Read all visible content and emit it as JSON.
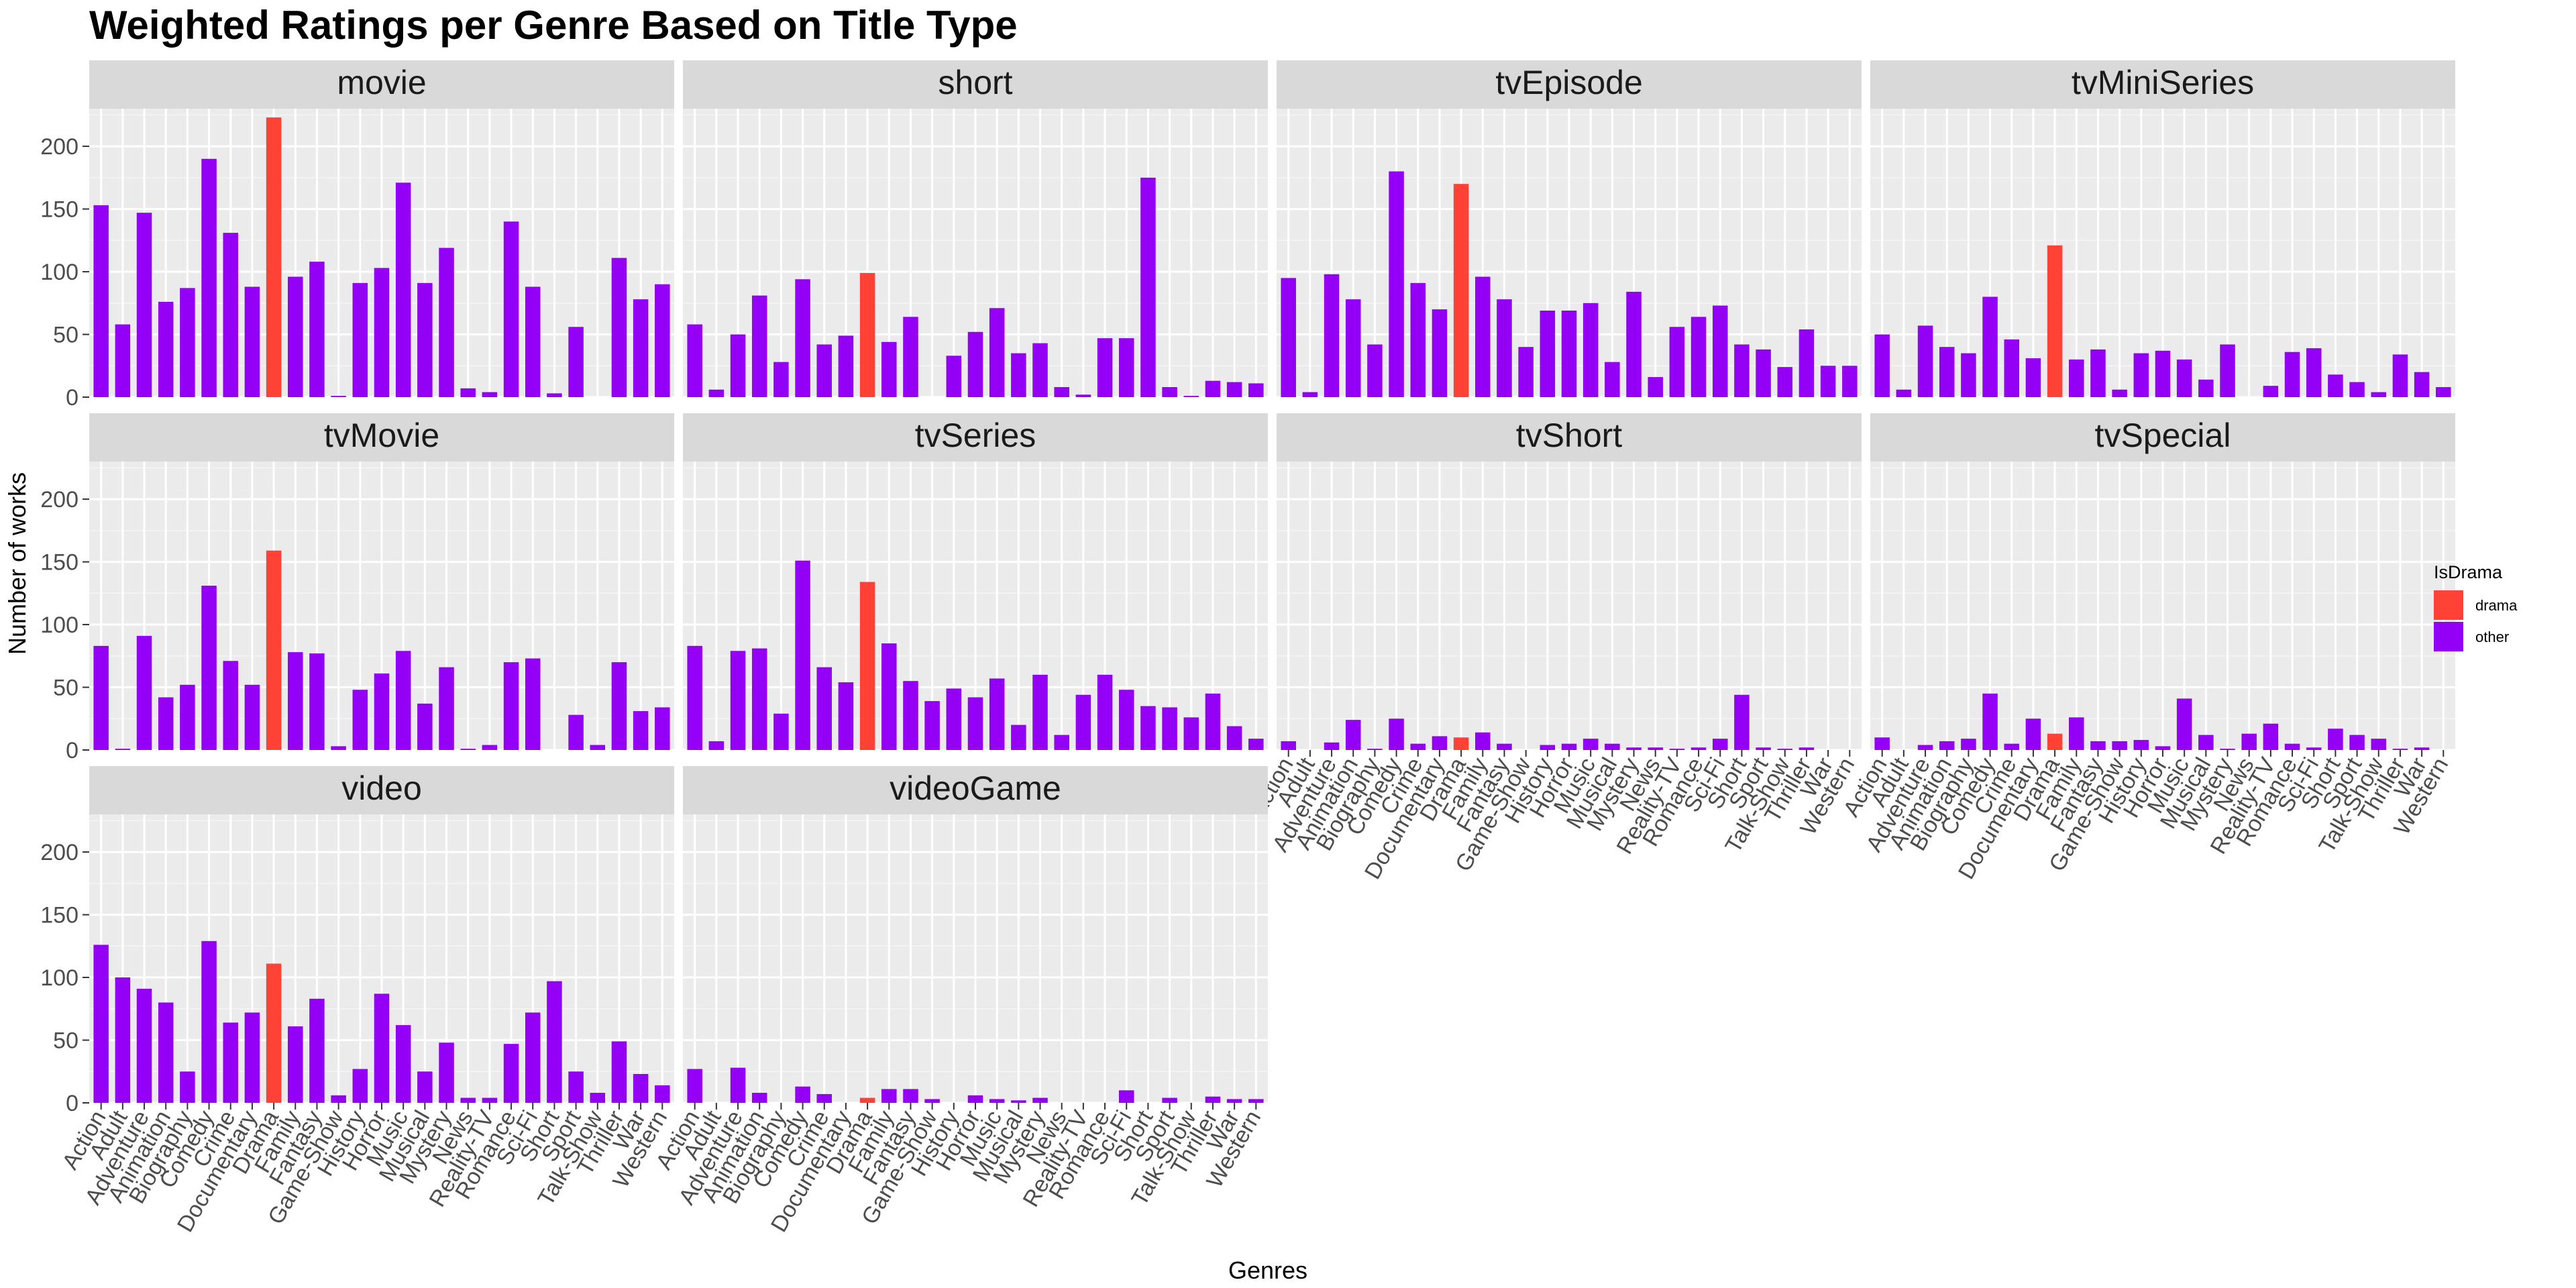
{
  "chart_data": {
    "type": "bar",
    "title": "Weighted Ratings per Genre Based on Title Type",
    "xlabel": "Genres",
    "ylabel": "Number of works",
    "ylim": [
      0,
      230
    ],
    "yticks": [
      0,
      50,
      100,
      150,
      200
    ],
    "grid": true,
    "facet_layout": "3 rows x 4 columns, shared axes",
    "legend": {
      "title": "IsDrama",
      "position": "right",
      "entries": [
        {
          "label": "drama",
          "color": "#ff4136"
        },
        {
          "label": "other",
          "color": "#9400f5"
        }
      ]
    },
    "categories": [
      "Action",
      "Adult",
      "Adventure",
      "Animation",
      "Biography",
      "Comedy",
      "Crime",
      "Documentary",
      "Drama",
      "Family",
      "Fantasy",
      "Game-Show",
      "History",
      "Horror",
      "Music",
      "Musical",
      "Mystery",
      "News",
      "Reality-TV",
      "Romance",
      "Sci-Fi",
      "Short",
      "Sport",
      "Talk-Show",
      "Thriller",
      "War",
      "Western"
    ],
    "highlight_category": "Drama",
    "panels": [
      {
        "name": "movie",
        "values": [
          153,
          58,
          147,
          76,
          87,
          190,
          131,
          88,
          223,
          96,
          108,
          1,
          91,
          103,
          171,
          91,
          119,
          7,
          4,
          140,
          88,
          3,
          56,
          0,
          111,
          78,
          90
        ]
      },
      {
        "name": "short",
        "values": [
          58,
          6,
          50,
          81,
          28,
          94,
          42,
          49,
          99,
          44,
          64,
          0,
          33,
          52,
          71,
          35,
          43,
          8,
          2,
          47,
          47,
          175,
          8,
          1,
          13,
          12,
          11
        ]
      },
      {
        "name": "tvEpisode",
        "values": [
          95,
          4,
          98,
          78,
          42,
          180,
          91,
          70,
          170,
          96,
          78,
          40,
          69,
          69,
          75,
          28,
          84,
          16,
          56,
          64,
          73,
          42,
          38,
          24,
          54,
          25,
          25
        ]
      },
      {
        "name": "tvMiniSeries",
        "values": [
          50,
          6,
          57,
          40,
          35,
          80,
          46,
          31,
          121,
          30,
          38,
          6,
          35,
          37,
          30,
          14,
          42,
          0,
          9,
          36,
          39,
          18,
          12,
          4,
          34,
          20,
          8
        ]
      },
      {
        "name": "tvMovie",
        "values": [
          83,
          1,
          91,
          42,
          52,
          131,
          71,
          52,
          159,
          78,
          77,
          3,
          48,
          61,
          79,
          37,
          66,
          1,
          4,
          70,
          73,
          0,
          28,
          4,
          70,
          31,
          34
        ]
      },
      {
        "name": "tvSeries",
        "values": [
          83,
          7,
          79,
          81,
          29,
          151,
          66,
          54,
          134,
          85,
          55,
          39,
          49,
          42,
          57,
          20,
          60,
          12,
          44,
          60,
          48,
          35,
          34,
          26,
          45,
          19,
          9
        ]
      },
      {
        "name": "tvShort",
        "values": [
          7,
          0,
          6,
          24,
          1,
          25,
          5,
          11,
          10,
          14,
          5,
          0,
          4,
          5,
          9,
          5,
          2,
          2,
          1,
          2,
          9,
          44,
          2,
          1,
          2,
          0,
          0
        ]
      },
      {
        "name": "tvSpecial",
        "values": [
          10,
          0,
          4,
          7,
          9,
          45,
          5,
          25,
          13,
          26,
          7,
          7,
          8,
          3,
          41,
          12,
          1,
          13,
          21,
          5,
          2,
          17,
          12,
          9,
          1,
          2,
          0
        ]
      },
      {
        "name": "video",
        "values": [
          126,
          100,
          91,
          80,
          25,
          129,
          64,
          72,
          111,
          61,
          83,
          6,
          27,
          87,
          62,
          25,
          48,
          4,
          4,
          47,
          72,
          97,
          25,
          8,
          49,
          23,
          14
        ]
      },
      {
        "name": "videoGame",
        "values": [
          27,
          0,
          28,
          8,
          0,
          13,
          7,
          0,
          4,
          11,
          11,
          3,
          0,
          6,
          3,
          2,
          4,
          0,
          0,
          0,
          10,
          0,
          4,
          0,
          5,
          3,
          3
        ]
      }
    ]
  }
}
